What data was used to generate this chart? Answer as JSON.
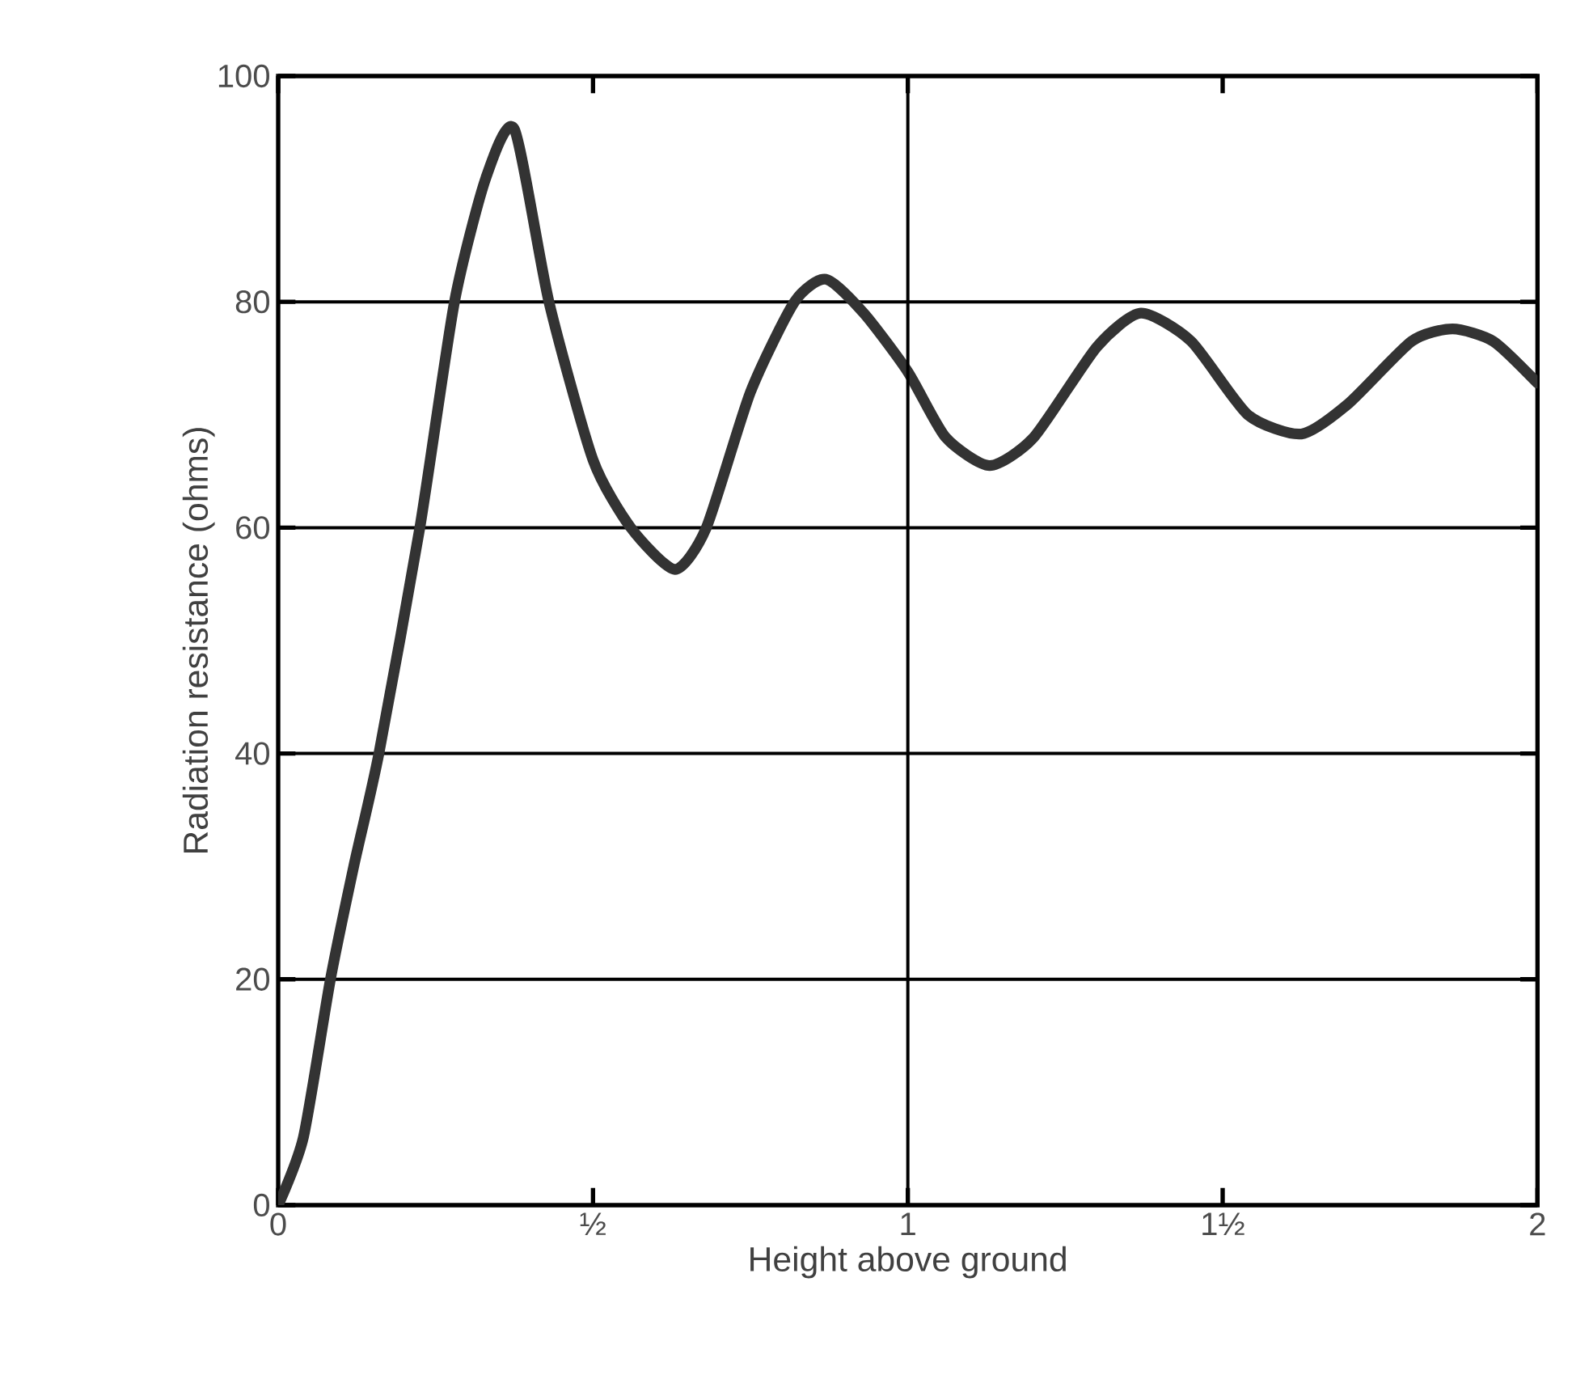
{
  "chart_data": {
    "type": "line",
    "xlabel": "Height above ground",
    "ylabel": "Radiation resistance (ohms)",
    "x": [
      0,
      0.04,
      0.083,
      0.12,
      0.16,
      0.225,
      0.28,
      0.33,
      0.375,
      0.43,
      0.5,
      0.56,
      0.63,
      0.68,
      0.75,
      0.82,
      0.87,
      0.93,
      1,
      1.06,
      1.13,
      1.2,
      1.3,
      1.37,
      1.45,
      1.54,
      1.625,
      1.7,
      1.8,
      1.865,
      1.93,
      2
    ],
    "series": [
      {
        "color": "#333333",
        "values": [
          0,
          6,
          20,
          30,
          40,
          60,
          80,
          91,
          95.3,
          80,
          66,
          60,
          56.3,
          60,
          72,
          80,
          82,
          79,
          73.8,
          68,
          65.5,
          68,
          76,
          79,
          76.5,
          70,
          68.3,
          71,
          76.5,
          77.6,
          76.5,
          72.8
        ]
      }
    ],
    "xlim": [
      0,
      2
    ],
    "ylim": [
      0,
      100
    ],
    "xticks": [
      0,
      {
        "value": 0.5,
        "label": "½"
      },
      1,
      {
        "value": 1.5,
        "label": "1½"
      },
      2
    ],
    "yticks": [
      0,
      20,
      40,
      60,
      80,
      100
    ],
    "grid": "y",
    "ref_lines": [
      {
        "axis": "x",
        "value": 1,
        "color": "#000000"
      }
    ],
    "marker": "none",
    "line_style": "solid"
  }
}
